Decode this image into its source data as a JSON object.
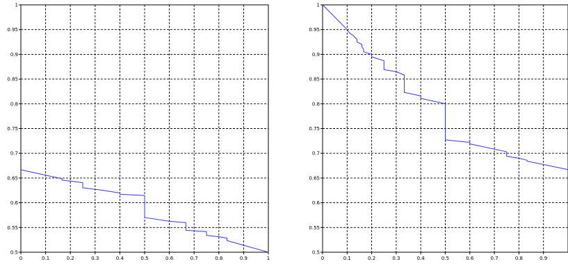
{
  "chart_data": [
    {
      "type": "line",
      "title": "",
      "xlabel": "",
      "ylabel": "",
      "xlim": [
        0,
        1
      ],
      "ylim": [
        0.5,
        1
      ],
      "grid": true,
      "x_ticks": [
        "0",
        "0.1",
        "0.2",
        "0.3",
        "0.4",
        "0.5",
        "0.6",
        "0.7",
        "0.8",
        "0.9",
        "1"
      ],
      "x_tick_values": [
        0,
        0.1,
        0.2,
        0.3,
        0.4,
        0.5,
        0.6,
        0.7,
        0.8,
        0.9,
        1
      ],
      "y_ticks": [
        "0.5",
        "0.55",
        "0.6",
        "0.65",
        "0.7",
        "0.75",
        "0.8",
        "0.85",
        "0.9",
        "0.95",
        "1"
      ],
      "y_tick_values": [
        0.5,
        0.55,
        0.6,
        0.65,
        0.7,
        0.75,
        0.8,
        0.85,
        0.9,
        0.95,
        1
      ],
      "series": [
        {
          "color": "#3333ff",
          "x": [
            0,
            0.1667,
            0.1667,
            0.25,
            0.25,
            0.333,
            0.4,
            0.4,
            0.5,
            0.5,
            0.5,
            0.6,
            0.6,
            0.6667,
            0.6667,
            0.75,
            0.75,
            0.8,
            0.8333,
            0.8333,
            1
          ],
          "y": [
            0.6667,
            0.6484,
            0.6458,
            0.6406,
            0.6302,
            0.625,
            0.6198,
            0.6172,
            0.6146,
            0.6146,
            0.5703,
            0.5625,
            0.5625,
            0.5599,
            0.5443,
            0.5417,
            0.5339,
            0.5313,
            0.5286,
            0.5234,
            0.5
          ]
        }
      ]
    },
    {
      "type": "line",
      "title": "",
      "xlabel": "",
      "ylabel": "",
      "xlim": [
        0,
        1
      ],
      "ylim": [
        0.5,
        1
      ],
      "grid": true,
      "x_ticks": [
        "0",
        "0.1",
        "0.2",
        "0.3",
        "0.4",
        "0.5",
        "0.6",
        "0.7",
        "0.8",
        "0.9"
      ],
      "x_tick_values": [
        0,
        0.1,
        0.2,
        0.3,
        0.4,
        0.5,
        0.6,
        0.7,
        0.8,
        0.9
      ],
      "y_ticks": [
        "0.5",
        "0.55",
        "0.6",
        "0.65",
        "0.7",
        "0.75",
        "0.8",
        "0.85",
        "0.9",
        "0.95",
        "1"
      ],
      "y_tick_values": [
        0.5,
        0.55,
        0.6,
        0.65,
        0.7,
        0.75,
        0.8,
        0.85,
        0.9,
        0.95,
        1
      ],
      "series": [
        {
          "color": "#3333ff",
          "x": [
            0,
            0.1,
            0.11,
            0.125,
            0.14,
            0.14,
            0.16,
            0.16,
            0.167,
            0.167,
            0.2,
            0.2,
            0.25,
            0.25,
            0.3,
            0.333,
            0.333,
            0.4,
            0.4,
            0.5,
            0.5,
            0.6,
            0.6,
            0.75,
            0.75,
            0.8,
            0.8333,
            0.8333,
            1
          ],
          "y": [
            1,
            0.95,
            0.943,
            0.938,
            0.93,
            0.925,
            0.92,
            0.915,
            0.91,
            0.905,
            0.9,
            0.895,
            0.887,
            0.869,
            0.865,
            0.858,
            0.823,
            0.816,
            0.811,
            0.8,
            0.727,
            0.722,
            0.719,
            0.703,
            0.694,
            0.69,
            0.686,
            0.684,
            0.667
          ]
        }
      ]
    }
  ]
}
